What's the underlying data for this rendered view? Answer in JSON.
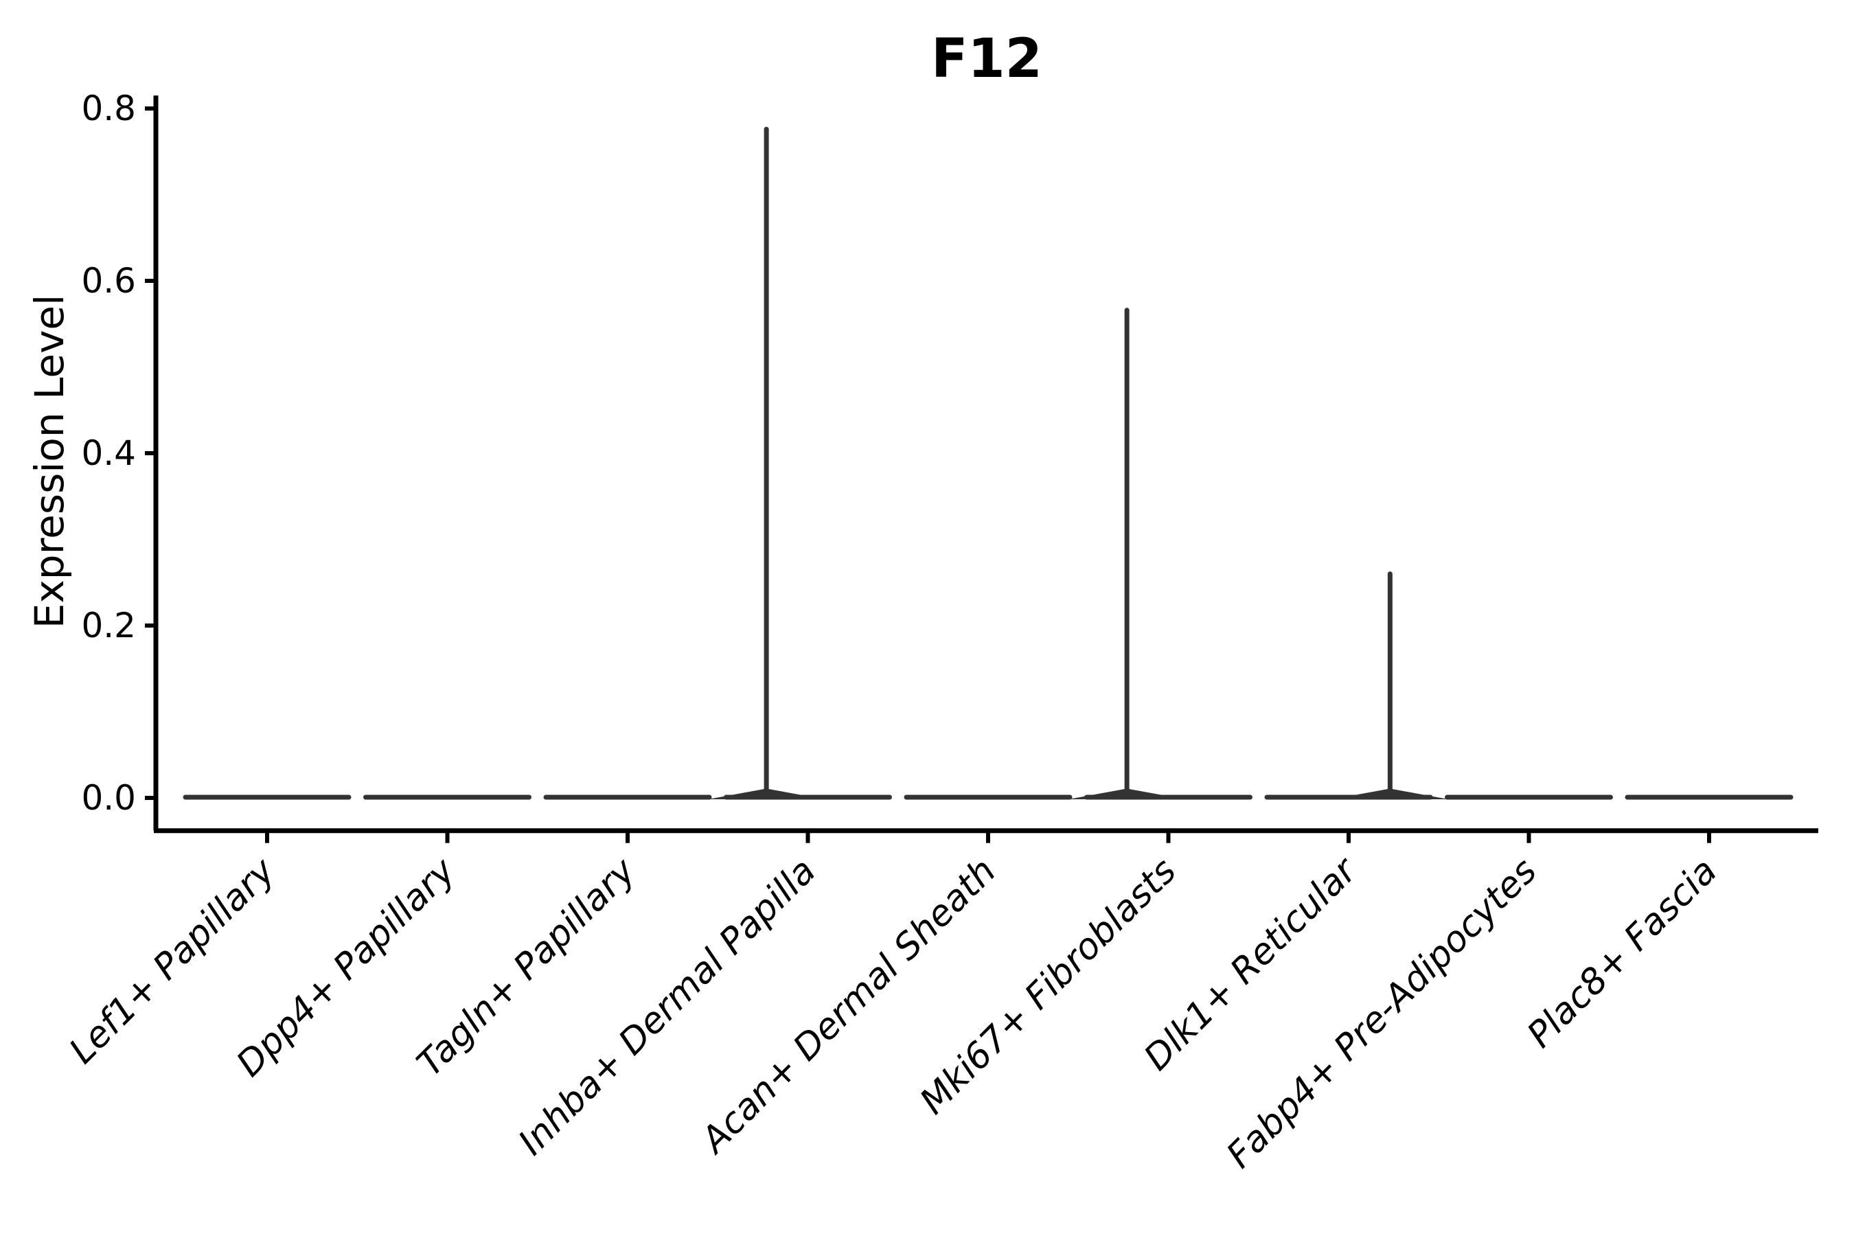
{
  "chart_data": {
    "type": "violin",
    "title": "F12",
    "ylabel": "Expression Level",
    "xlabel": "",
    "grid": false,
    "legend": "none",
    "background": "#ffffff",
    "axis_color": "#000000",
    "violin_color": "#333333",
    "text_color": "#000000",
    "ylim": [
      -0.038,
      0.815
    ],
    "yticks": [
      {
        "label": "0.0",
        "value": 0.0
      },
      {
        "label": "0.2",
        "value": 0.2
      },
      {
        "label": "0.4",
        "value": 0.4
      },
      {
        "label": "0.6",
        "value": 0.6
      },
      {
        "label": "0.8",
        "value": 0.8
      }
    ],
    "categories": [
      "Lef1+ Papillary",
      "Dpp4+ Papillary",
      "Tagln+ Papillary",
      "Inhba+ Dermal Papilla",
      "Acan+ Dermal Sheath",
      "Mki67+ Fibroblasts",
      "Dlk1+ Reticular",
      "Fabp4+ Pre-Adipocytes",
      "Plac8+ Fascia"
    ],
    "baseline_value": 0.0,
    "values_max": [
      0,
      0,
      0,
      0.776,
      0,
      0.566,
      0.26,
      0,
      0
    ],
    "spike_offset_frac": [
      0,
      0,
      0,
      -0.23,
      0,
      -0.23,
      0.23,
      0,
      0
    ]
  }
}
